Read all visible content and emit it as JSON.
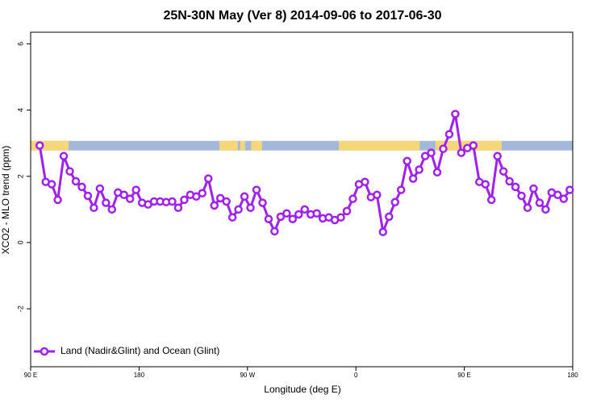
{
  "chart_data": {
    "type": "line",
    "title": "25N-30N May (Ver 8)   2014-09-06 to 2017-06-30",
    "xlabel": "Longitude (deg E)",
    "ylabel": "XCO2 - MLO trend (ppm)",
    "xlim": [
      90,
      540
    ],
    "ylim": [
      -3.75,
      6.35
    ],
    "xticks": [
      {
        "value": 90,
        "label": "90 E"
      },
      {
        "value": 180,
        "label": "180"
      },
      {
        "value": 270,
        "label": "90 W"
      },
      {
        "value": 360,
        "label": "0"
      },
      {
        "value": 450,
        "label": "90 E"
      },
      {
        "value": 540,
        "label": "180"
      }
    ],
    "yticks": [
      -2,
      0,
      2,
      4,
      6
    ],
    "legend": "bottom-left",
    "surface_band": {
      "ylim": [
        2.78,
        3.07
      ],
      "ocean_color": "#a3b9d9",
      "land_color": "#f5d77a",
      "land_ranges": [
        [
          90,
          121.5
        ],
        [
          246.7,
          262
        ],
        [
          264,
          268
        ],
        [
          273,
          282
        ],
        [
          345.8,
          413
        ],
        [
          426,
          481
        ]
      ]
    },
    "x": [
      97.5,
      102.5,
      107.5,
      112.5,
      117.5,
      122.5,
      127.5,
      132.5,
      137.5,
      142.5,
      147.5,
      152.5,
      157.5,
      162.5,
      167.5,
      172.5,
      177.5,
      182.5,
      187.5,
      192.5,
      197.5,
      202.5,
      207.5,
      212.5,
      217.5,
      222.5,
      227.5,
      232.5,
      237.5,
      242.5,
      247.5,
      252.5,
      257.5,
      262.5,
      267.5,
      272.5,
      277.5,
      282.5,
      287.5,
      292.5,
      297.5,
      302.5,
      307.5,
      312.5,
      317.5,
      322.5,
      327.5,
      332.5,
      337.5,
      342.5,
      347.5,
      352.5,
      357.5,
      362.5,
      367.5,
      372.5,
      377.5,
      382.5,
      387.5,
      392.5,
      397.5,
      402.5,
      407.5,
      412.5,
      417.5,
      422.5,
      427.5,
      432.5,
      437.5,
      442.5,
      447.5,
      452.5,
      457.5,
      462.5,
      467.5,
      472.5,
      477.5,
      482.5,
      487.5,
      492.5,
      497.5,
      502.5,
      507.5,
      512.5,
      517.5,
      522.5,
      527.5,
      532.5,
      537.5
    ],
    "series": [
      {
        "name": "Land (Nadir&Glint) and Ocean (Glint)",
        "color": "#a020f0",
        "values": [
          2.93,
          1.83,
          1.76,
          1.29,
          2.61,
          2.15,
          1.85,
          1.68,
          1.41,
          1.05,
          1.63,
          1.2,
          1.0,
          1.51,
          1.44,
          1.32,
          1.59,
          1.2,
          1.15,
          1.24,
          1.24,
          1.22,
          1.24,
          1.05,
          1.29,
          1.44,
          1.39,
          1.49,
          1.93,
          1.12,
          1.34,
          1.24,
          0.76,
          1.0,
          1.39,
          1.05,
          1.59,
          1.2,
          0.71,
          0.34,
          0.78,
          0.88,
          0.71,
          0.85,
          1.0,
          0.85,
          0.88,
          0.73,
          0.76,
          0.68,
          0.76,
          0.95,
          1.32,
          1.76,
          1.83,
          1.37,
          1.44,
          0.32,
          0.78,
          1.22,
          1.59,
          2.46,
          1.93,
          2.2,
          2.61,
          2.71,
          2.12,
          2.83,
          3.27,
          3.88,
          2.71,
          2.85,
          2.93,
          1.83,
          1.76,
          1.29,
          2.61,
          2.15,
          1.85,
          1.68,
          1.41,
          1.05,
          1.63,
          1.2,
          1.0,
          1.51,
          1.44,
          1.32,
          1.59
        ]
      }
    ]
  }
}
